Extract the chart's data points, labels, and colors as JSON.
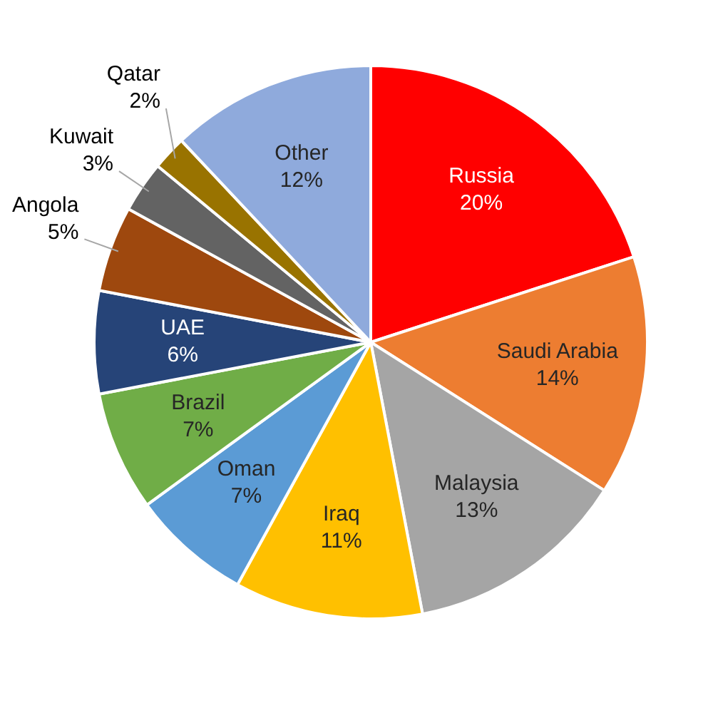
{
  "chart_data": {
    "type": "pie",
    "categories": [
      "Russia",
      "Saudi Arabia",
      "Malaysia",
      "Iraq",
      "Oman",
      "Brazil",
      "UAE",
      "Angola",
      "Kuwait",
      "Qatar",
      "Other"
    ],
    "values": [
      20,
      14,
      13,
      11,
      7,
      7,
      6,
      5,
      3,
      2,
      12
    ],
    "colors": [
      "#ff0000",
      "#ed7d31",
      "#a5a5a5",
      "#ffc000",
      "#5b9bd5",
      "#70ad47",
      "#264478",
      "#9e480e",
      "#636363",
      "#997300",
      "#8faadc"
    ],
    "value_labels": [
      "20%",
      "14%",
      "13%",
      "11%",
      "7%",
      "7%",
      "6%",
      "5%",
      "3%",
      "2%",
      "12%"
    ],
    "legend": false
  }
}
